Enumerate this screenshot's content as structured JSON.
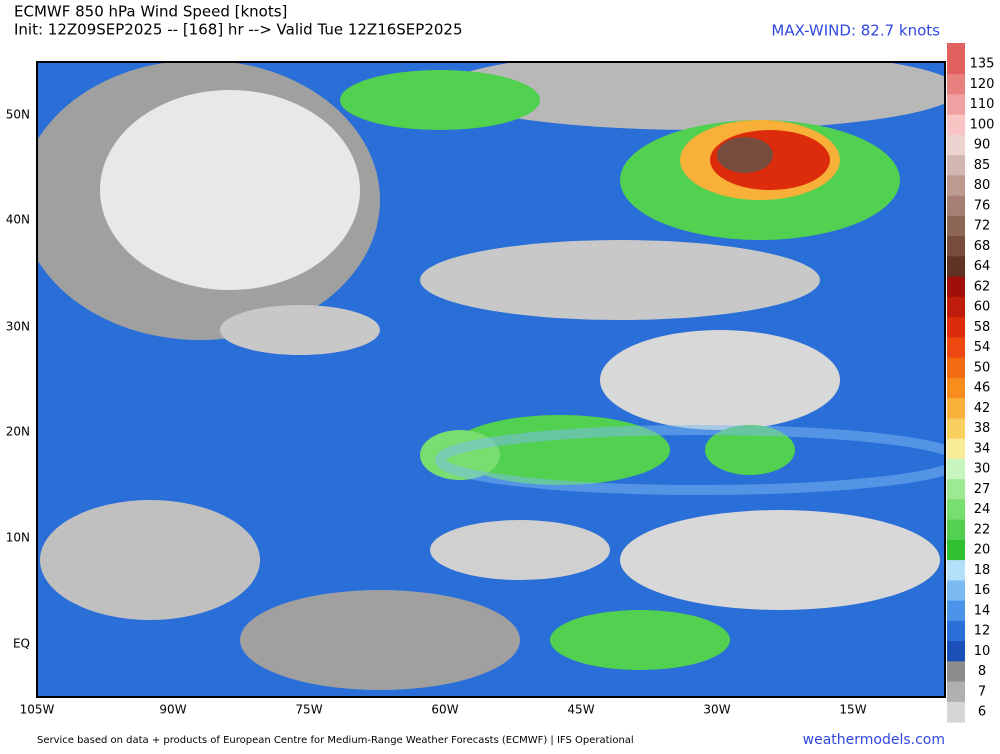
{
  "header": {
    "title": "ECMWF 850 hPa Wind Speed [knots]",
    "subtitle": "Init: 12Z09SEP2025 -- [168] hr --> Valid Tue 12Z16SEP2025",
    "max_wind": "MAX-WIND: 82.7 knots"
  },
  "map": {
    "lat_labels": [
      "50N",
      "40N",
      "30N",
      "20N",
      "10N",
      "EQ"
    ],
    "lon_labels": [
      "105W",
      "90W",
      "75W",
      "60W",
      "45W",
      "30W",
      "15W"
    ]
  },
  "legend": {
    "levels": [
      {
        "label": "135",
        "color": "#e06060"
      },
      {
        "label": "120",
        "color": "#e88080"
      },
      {
        "label": "110",
        "color": "#f0a0a0"
      },
      {
        "label": "100",
        "color": "#f8c4c4"
      },
      {
        "label": "90",
        "color": "#ecd4d0"
      },
      {
        "label": "85",
        "color": "#d4b6b0"
      },
      {
        "label": "80",
        "color": "#bc9a92"
      },
      {
        "label": "76",
        "color": "#a67e74"
      },
      {
        "label": "72",
        "color": "#8e6658"
      },
      {
        "label": "68",
        "color": "#764c3e"
      },
      {
        "label": "64",
        "color": "#5e3224"
      },
      {
        "label": "62",
        "color": "#a01008"
      },
      {
        "label": "60",
        "color": "#c01c0c"
      },
      {
        "label": "58",
        "color": "#dc2c0c"
      },
      {
        "label": "54",
        "color": "#ec4810"
      },
      {
        "label": "50",
        "color": "#f46a10"
      },
      {
        "label": "46",
        "color": "#f88c1c"
      },
      {
        "label": "42",
        "color": "#f8b038"
      },
      {
        "label": "38",
        "color": "#f8d060"
      },
      {
        "label": "34",
        "color": "#f8ec98"
      },
      {
        "label": "30",
        "color": "#c8f4c0"
      },
      {
        "label": "27",
        "color": "#9cea94"
      },
      {
        "label": "24",
        "color": "#78de70"
      },
      {
        "label": "22",
        "color": "#52d050"
      },
      {
        "label": "20",
        "color": "#30c030"
      },
      {
        "label": "18",
        "color": "#b4e0fa"
      },
      {
        "label": "16",
        "color": "#7cbaf2"
      },
      {
        "label": "14",
        "color": "#4c94ea"
      },
      {
        "label": "12",
        "color": "#2a6ed8"
      },
      {
        "label": "10",
        "color": "#1a50b8"
      },
      {
        "label": "8",
        "color": "#8c8c8c"
      },
      {
        "label": "7",
        "color": "#b0b0b0"
      },
      {
        "label": "6",
        "color": "#d6d6d6"
      }
    ]
  },
  "footer": {
    "credit": "Service based on data + products of European Centre for Medium-Range Weather Forecasts (ECMWF) | IFS Operational",
    "site": "weathermodels.com"
  }
}
